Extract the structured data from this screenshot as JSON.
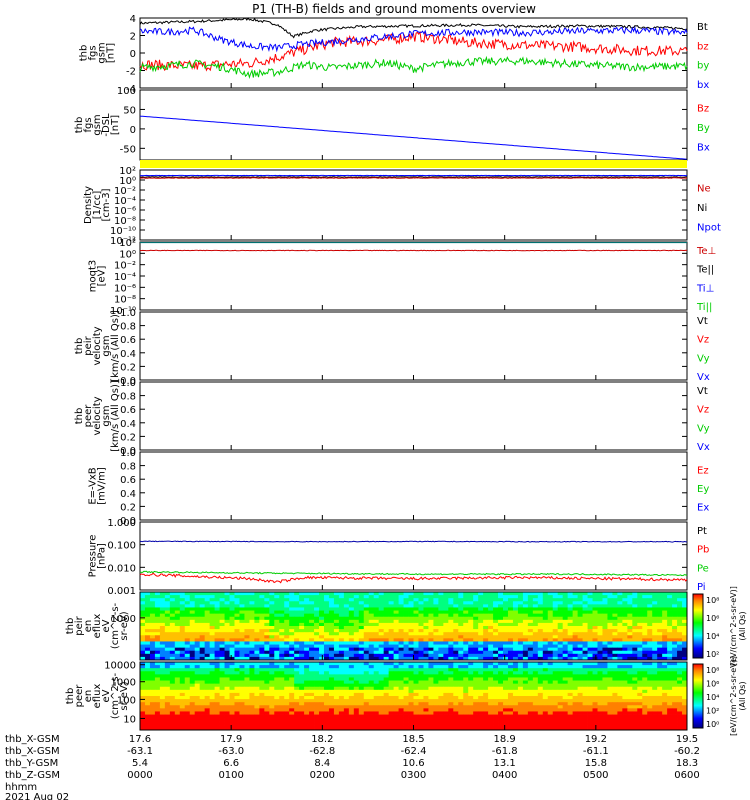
{
  "title": "P1 (TH-B) fields and ground moments overview",
  "chart_data": [
    {
      "type": "line",
      "name": "panel-fgs-gsm",
      "ylabel": [
        "thb",
        "fgs",
        "gsm",
        "[nT]"
      ],
      "ylim": [
        -4,
        4
      ],
      "yticks": [
        -4,
        -2,
        0,
        2,
        4
      ],
      "legend": [
        {
          "label": "Bt",
          "color": "#000000"
        },
        {
          "label": "bz",
          "color": "#ff0000"
        },
        {
          "label": "by",
          "color": "#00cc00"
        },
        {
          "label": "bx",
          "color": "#0000ff"
        }
      ],
      "series": [
        {
          "label": "Bt",
          "color": "#000000",
          "x": [
            0,
            0.1,
            0.2,
            0.25,
            0.28,
            0.32,
            0.4,
            0.5,
            0.6,
            0.7,
            0.8,
            0.9,
            1
          ],
          "y": [
            3.4,
            3.6,
            3.9,
            3.3,
            1.9,
            2.6,
            3.0,
            3.1,
            3.2,
            3.0,
            3.1,
            3.0,
            2.8
          ],
          "noise": 0.15
        },
        {
          "label": "bz",
          "color": "#ff0000",
          "x": [
            0,
            0.1,
            0.15,
            0.2,
            0.25,
            0.3,
            0.35,
            0.45,
            0.5,
            0.55,
            0.6,
            0.7,
            0.8,
            0.9,
            1
          ],
          "y": [
            -1.3,
            -1.5,
            -1.3,
            -1.2,
            -0.5,
            0.4,
            1.2,
            1.5,
            1.9,
            1.6,
            1.2,
            0.9,
            0.7,
            0.3,
            0.2
          ],
          "noise": 0.6
        },
        {
          "label": "by",
          "color": "#00cc00",
          "x": [
            0,
            0.1,
            0.15,
            0.2,
            0.25,
            0.3,
            0.35,
            0.45,
            0.5,
            0.55,
            0.6,
            0.7,
            0.8,
            0.9,
            1
          ],
          "y": [
            -1.7,
            -1.2,
            -1.6,
            -2.4,
            -2.2,
            -1.3,
            -1.7,
            -1.1,
            -1.8,
            -1.3,
            -1.0,
            -0.9,
            -1.3,
            -1.6,
            -1.5
          ],
          "noise": 0.45
        },
        {
          "label": "bx",
          "color": "#0000ff",
          "x": [
            0,
            0.05,
            0.1,
            0.15,
            0.2,
            0.25,
            0.3,
            0.4,
            0.5,
            0.6,
            0.7,
            0.8,
            0.9,
            1
          ],
          "y": [
            2.5,
            2.4,
            2.6,
            1.5,
            0.8,
            0.6,
            1.0,
            1.6,
            2.2,
            2.4,
            2.3,
            2.5,
            2.6,
            2.3
          ],
          "noise": 0.4
        }
      ]
    },
    {
      "type": "line",
      "name": "panel-fgs-dsl",
      "ylabel": [
        "thb",
        "fgs",
        "gsm",
        "-DSL",
        "[nT]"
      ],
      "ylim": [
        -80,
        100
      ],
      "yticks": [
        -50,
        0,
        50,
        100
      ],
      "legend": [
        {
          "label": "Bz",
          "color": "#ff0000"
        },
        {
          "label": "By",
          "color": "#00cc00"
        },
        {
          "label": "Bx",
          "color": "#0000ff"
        }
      ],
      "series": [
        {
          "label": "Bx",
          "color": "#0000ff",
          "x": [
            0,
            1
          ],
          "y": [
            33,
            -78
          ],
          "noise": 0
        }
      ]
    },
    {
      "type": "bar-strip",
      "name": "panel-flag-strip",
      "color": "#ffff00"
    },
    {
      "type": "line",
      "name": "panel-density",
      "log": true,
      "ylabel": [
        "Density",
        "[1/cc]",
        "[cm-3]"
      ],
      "ylim_exp": [
        -12,
        2
      ],
      "yticks_exp": [
        2,
        0,
        -2,
        -4,
        -6,
        -8,
        -10,
        -12
      ],
      "legend": [
        {
          "label": "Ne",
          "color": "#cc0000"
        },
        {
          "label": "Ni",
          "color": "#000000"
        },
        {
          "label": "Npot",
          "color": "#0000ff"
        }
      ],
      "series": [
        {
          "label": "Ni",
          "color": "#000000",
          "x": [
            0,
            1
          ],
          "y": [
            0.6,
            0.6
          ],
          "noise": 0.05
        },
        {
          "label": "Ne",
          "color": "#cc0000",
          "x": [
            0,
            1
          ],
          "y": [
            0.4,
            0.4
          ],
          "noise": 0.05
        },
        {
          "label": "Npot",
          "color": "#0000ff",
          "x": [
            0,
            1
          ],
          "y": [
            0.9,
            0.9
          ],
          "noise": 0.03
        }
      ]
    },
    {
      "type": "line",
      "name": "panel-temperature",
      "log": true,
      "ylabel": [
        "moqt3",
        "[eV]"
      ],
      "ylim_exp": [
        -10,
        2
      ],
      "yticks_exp": [
        2,
        0,
        -2,
        -4,
        -6,
        -8,
        -10
      ],
      "legend": [
        {
          "label": "Te⊥",
          "color": "#cc0000"
        },
        {
          "label": "Te||",
          "color": "#000000"
        },
        {
          "label": "Ti⊥",
          "color": "#0000ff"
        },
        {
          "label": "Ti||",
          "color": "#00cc00"
        }
      ],
      "series": [
        {
          "label": "Te||",
          "color": "#008080",
          "x": [
            0,
            1
          ],
          "y": [
            1.9,
            1.9
          ],
          "noise": 0
        },
        {
          "label": "Te⊥",
          "color": "#cc0000",
          "x": [
            0,
            1
          ],
          "y": [
            0.5,
            0.5
          ],
          "noise": 0.04
        }
      ]
    },
    {
      "type": "line",
      "name": "panel-peir-velocity",
      "ylabel": [
        "thb",
        "peir",
        "velocity",
        "gsm",
        "[km/s (All Qs)]"
      ],
      "ylim": [
        0,
        1
      ],
      "yticks": [
        "0.0",
        "0.2",
        "0.4",
        "0.6",
        "0.8",
        "1.0"
      ],
      "legend": [
        {
          "label": "Vt",
          "color": "#000000"
        },
        {
          "label": "Vz",
          "color": "#ff0000"
        },
        {
          "label": "Vy",
          "color": "#00cc00"
        },
        {
          "label": "Vx",
          "color": "#0000ff"
        }
      ],
      "series": []
    },
    {
      "type": "line",
      "name": "panel-peer-velocity",
      "ylabel": [
        "thb",
        "peer",
        "velocity",
        "gsm",
        "[km/s (All Qs)]"
      ],
      "ylim": [
        0,
        1
      ],
      "yticks": [
        "0.0",
        "0.2",
        "0.4",
        "0.6",
        "0.8",
        "1.0"
      ],
      "legend": [
        {
          "label": "Vt",
          "color": "#000000"
        },
        {
          "label": "Vz",
          "color": "#ff0000"
        },
        {
          "label": "Vy",
          "color": "#00cc00"
        },
        {
          "label": "Vx",
          "color": "#0000ff"
        }
      ],
      "series": []
    },
    {
      "type": "line",
      "name": "panel-efield",
      "ylabel": [
        "E=-VxB",
        "[mV/m]"
      ],
      "ylim": [
        0,
        1
      ],
      "yticks": [
        "0.0",
        "0.2",
        "0.4",
        "0.6",
        "0.8",
        "1.0"
      ],
      "legend": [
        {
          "label": "Ez",
          "color": "#ff0000"
        },
        {
          "label": "Ey",
          "color": "#00cc00"
        },
        {
          "label": "Ex",
          "color": "#0000ff"
        }
      ],
      "series": []
    },
    {
      "type": "line",
      "name": "panel-pressure",
      "log": true,
      "ylabel": [
        "Pressure",
        "[nPa]"
      ],
      "ylim_exp": [
        -3,
        0
      ],
      "yticks_lbl": [
        "1.000",
        "0.100",
        "0.010",
        "0.001"
      ],
      "legend": [
        {
          "label": "Pt",
          "color": "#000000"
        },
        {
          "label": "Pb",
          "color": "#ff0000"
        },
        {
          "label": "Pe",
          "color": "#00cc00"
        },
        {
          "label": "Pi",
          "color": "#0000ff"
        }
      ],
      "series": [
        {
          "label": "Pt",
          "color": "#0000aa",
          "x": [
            0,
            0.3,
            0.5,
            0.7,
            1
          ],
          "y": [
            -0.85,
            -0.87,
            -0.86,
            -0.87,
            -0.87
          ],
          "noise": 0.015
        },
        {
          "label": "Pe",
          "color": "#00cc00",
          "x": [
            0,
            0.2,
            0.5,
            0.8,
            1
          ],
          "y": [
            -2.2,
            -2.25,
            -2.3,
            -2.3,
            -2.35
          ],
          "noise": 0.03
        },
        {
          "label": "Pb",
          "color": "#ff0000",
          "x": [
            0,
            0.2,
            0.25,
            0.3,
            0.5,
            0.7,
            0.85,
            1
          ],
          "y": [
            -2.3,
            -2.5,
            -2.65,
            -2.45,
            -2.5,
            -2.45,
            -2.5,
            -2.55
          ],
          "noise": 0.06
        }
      ]
    },
    {
      "type": "heatmap",
      "name": "panel-peir-eflux",
      "ylabel": [
        "thb",
        "peir",
        "en",
        "eflux",
        "eV",
        "(cm^2-s-",
        "sr-eV)"
      ],
      "yticks": [
        {
          "label": "1000",
          "frac": 0.38
        }
      ],
      "colorbar": {
        "ticks": [
          "10⁸",
          "10⁶",
          "10⁴",
          "10²"
        ],
        "label": "[eV/(cm^2-s-sr-eV)]",
        "sublabel": "(All Qs)"
      }
    },
    {
      "type": "heatmap",
      "name": "panel-peer-eflux",
      "ylabel": [
        "thb",
        "peer",
        "en",
        "eflux",
        "eV",
        "(cm^2-s-",
        "sr-eV)"
      ],
      "yticks": [
        {
          "label": "10000",
          "frac": 0.04
        },
        {
          "label": "1000",
          "frac": 0.29
        },
        {
          "label": "100",
          "frac": 0.55
        },
        {
          "label": "10",
          "frac": 0.83
        }
      ],
      "colorbar": {
        "ticks": [
          "10⁸",
          "10⁶",
          "10⁴",
          "10²",
          "10⁰"
        ],
        "label": "[eV/(cm^2-s-sr-eV)]",
        "sublabel": "(All Qs)"
      }
    }
  ],
  "time_axis": {
    "rows": [
      {
        "label": "thb_X-GSM",
        "values": [
          "17.6",
          "17.9",
          "18.2",
          "18.5",
          "18.9",
          "19.2",
          "19.5"
        ]
      },
      {
        "label": "thb_X-GSM",
        "values": [
          "-63.1",
          "-63.0",
          "-62.8",
          "-62.4",
          "-61.8",
          "-61.1",
          "-60.2"
        ]
      },
      {
        "label": "thb_Y-GSM",
        "values": [
          "5.4",
          "6.6",
          "8.4",
          "10.6",
          "13.1",
          "15.8",
          "18.3"
        ]
      },
      {
        "label": "thb_Z-GSM",
        "values": [
          "0000",
          "0100",
          "0200",
          "0300",
          "0400",
          "0500",
          "0600"
        ]
      },
      {
        "label": "hhmm",
        "values": []
      }
    ],
    "date": "2021 Aug 02"
  },
  "colors": {
    "frame": "#000000"
  }
}
